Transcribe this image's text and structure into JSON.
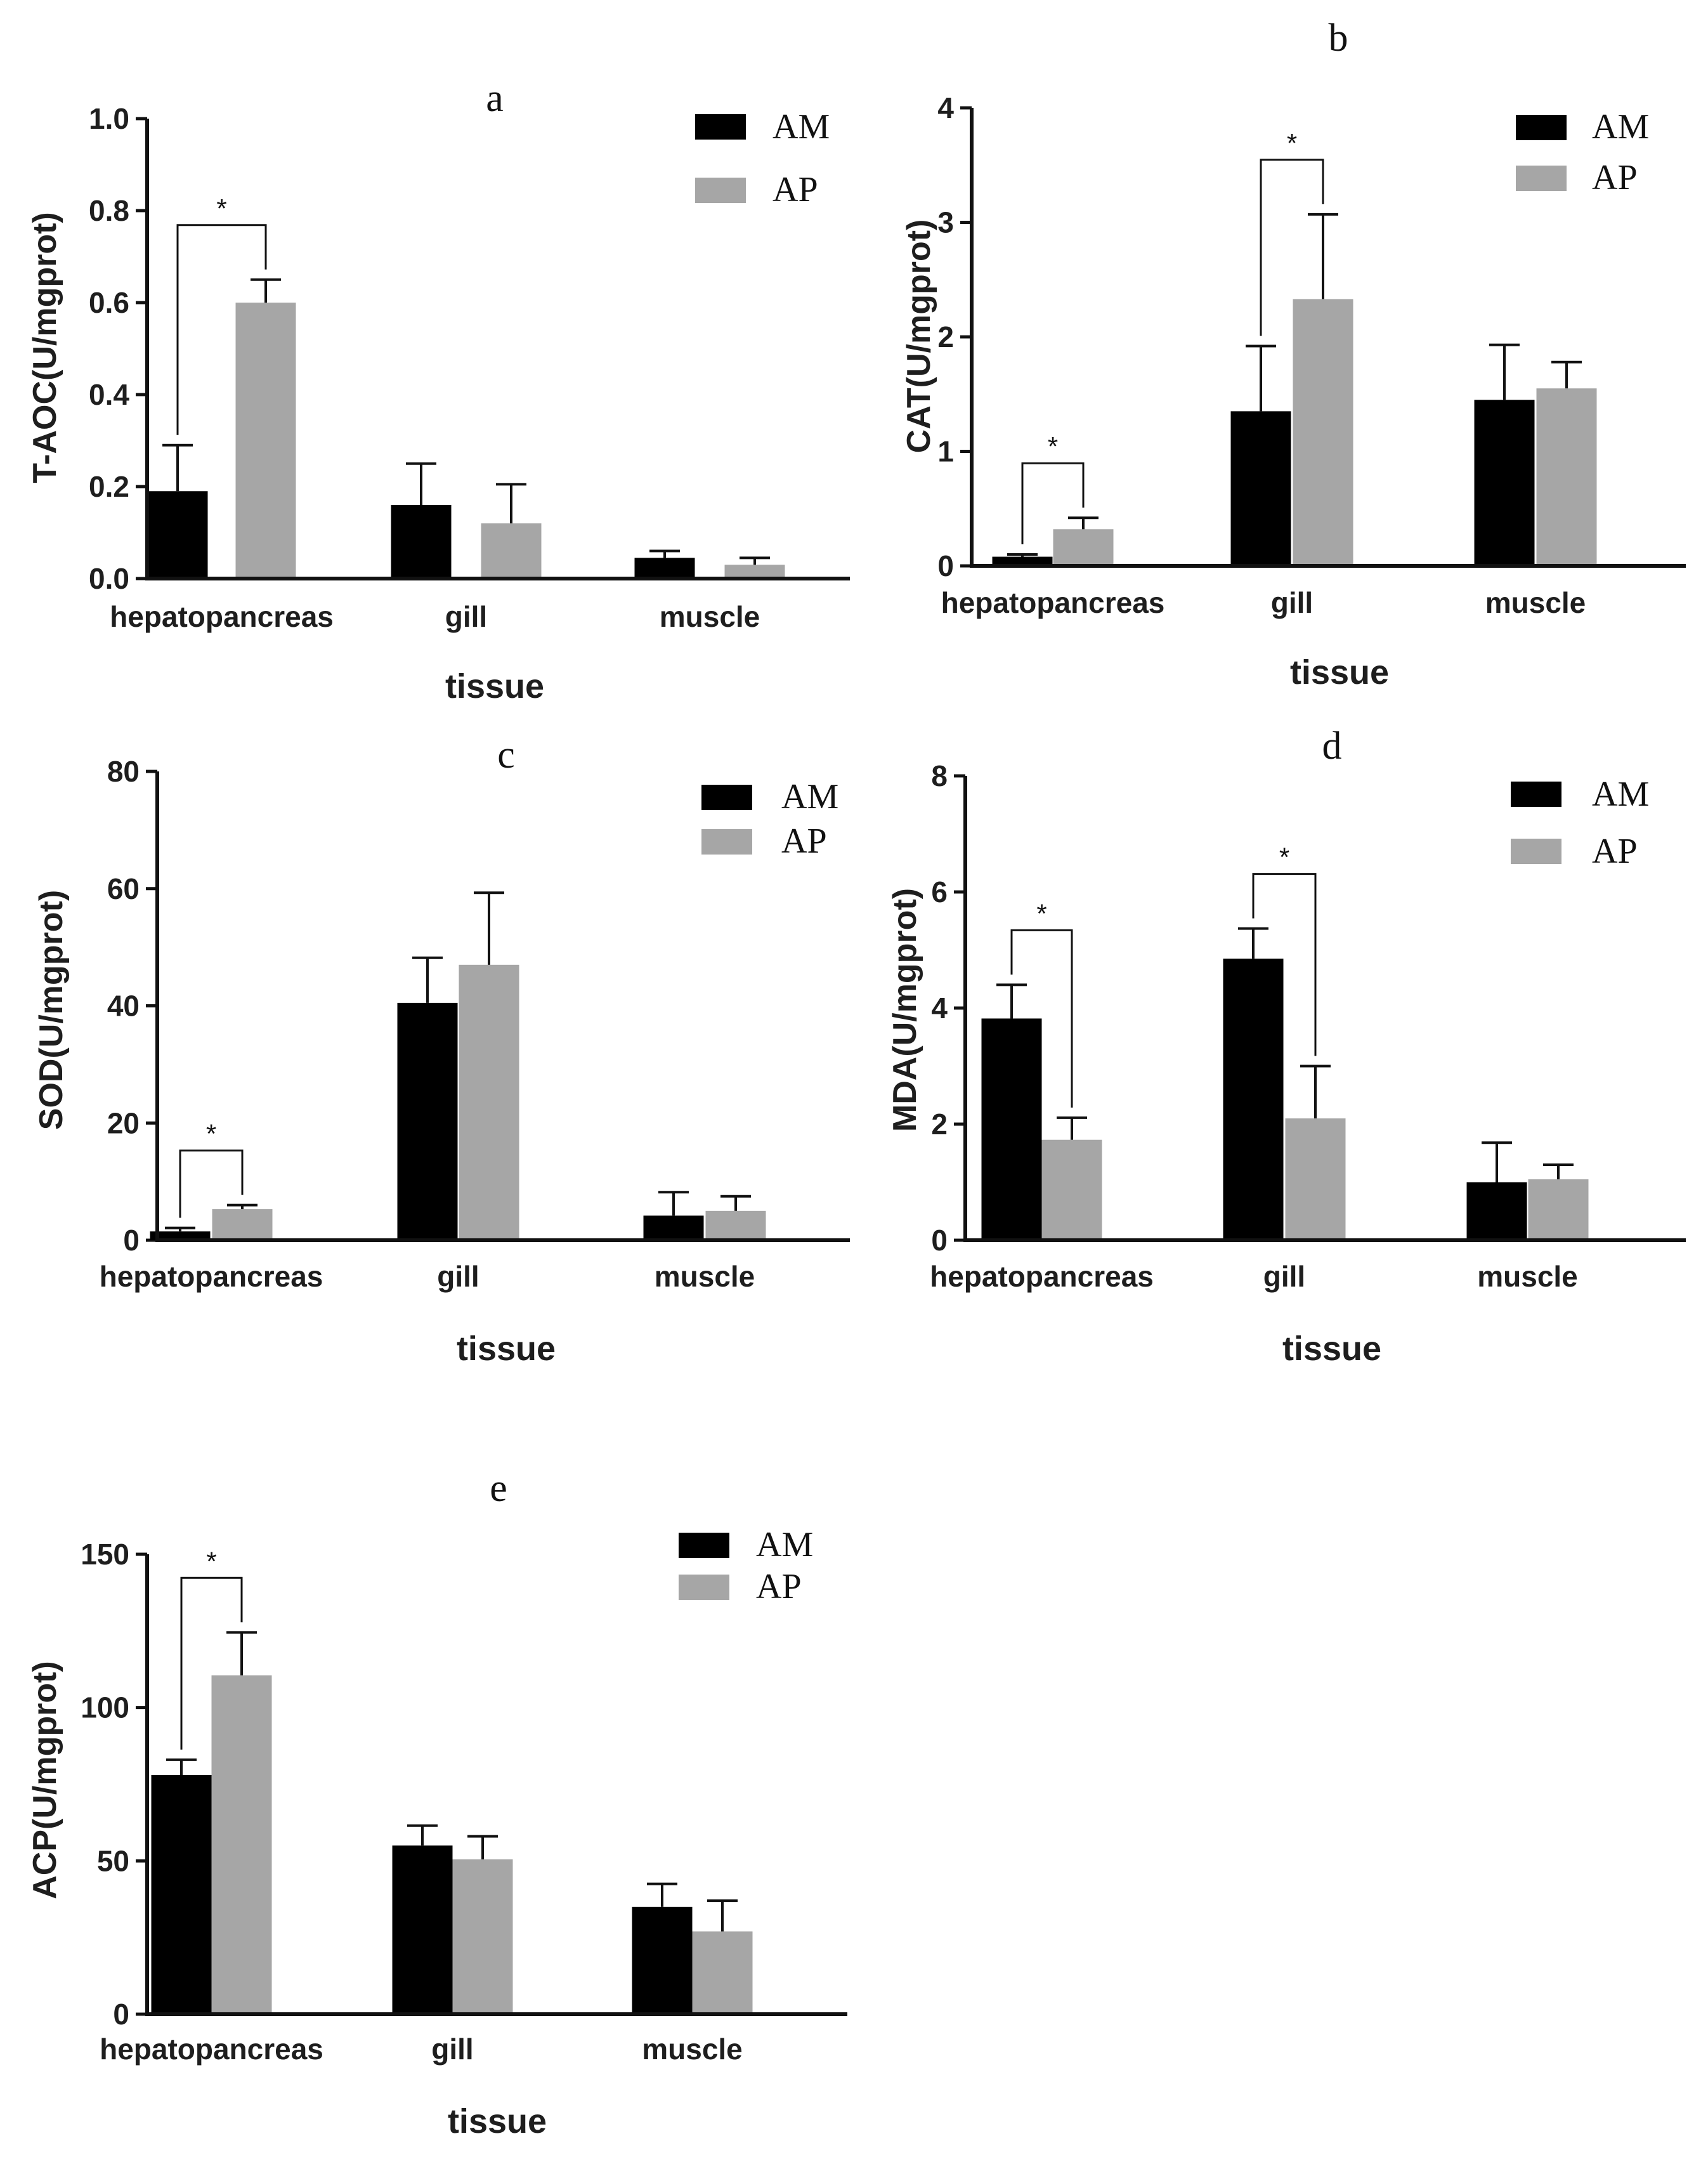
{
  "colors": {
    "AM": "#000000",
    "AP": "#a6a6a6",
    "axis": "#111111"
  },
  "chart_data": [
    {
      "id": "a",
      "panel_label": "a",
      "type": "bar",
      "ylabel": "T-AOC(U/mgprot)",
      "xlabel": "tissue",
      "categories": [
        "hepatopancreas",
        "gill",
        "muscle"
      ],
      "ylim": [
        0,
        1.0
      ],
      "yticks": [
        "0.0",
        "0.2",
        "0.4",
        "0.6",
        "0.8",
        "1.0"
      ],
      "series": [
        {
          "name": "AM",
          "values": [
            0.19,
            0.16,
            0.045
          ],
          "errors": [
            0.1,
            0.09,
            0.015
          ]
        },
        {
          "name": "AP",
          "values": [
            0.6,
            0.12,
            0.03
          ],
          "errors": [
            0.05,
            0.085,
            0.015
          ]
        }
      ],
      "significance": [
        {
          "category": 0,
          "label": "*"
        }
      ],
      "legend": [
        "AM",
        "AP"
      ]
    },
    {
      "id": "b",
      "panel_label": "b",
      "type": "bar",
      "ylabel": "CAT(U/mgprot)",
      "xlabel": "tissue",
      "categories": [
        "hepatopancreas",
        "gill",
        "muscle"
      ],
      "ylim": [
        0,
        4
      ],
      "yticks": [
        "0",
        "1",
        "2",
        "3",
        "4"
      ],
      "series": [
        {
          "name": "AM",
          "values": [
            0.08,
            1.35,
            1.45
          ],
          "errors": [
            0.02,
            0.57,
            0.48
          ]
        },
        {
          "name": "AP",
          "values": [
            0.32,
            2.33,
            1.55
          ],
          "errors": [
            0.1,
            0.74,
            0.23
          ]
        }
      ],
      "significance": [
        {
          "category": 0,
          "label": "*"
        },
        {
          "category": 1,
          "label": "*"
        }
      ],
      "legend": [
        "AM",
        "AP"
      ]
    },
    {
      "id": "c",
      "panel_label": "c",
      "type": "bar",
      "ylabel": "SOD(U/mgprot)",
      "xlabel": "tissue",
      "categories": [
        "hepatopancreas",
        "gill",
        "muscle"
      ],
      "ylim": [
        0,
        80
      ],
      "yticks": [
        "0",
        "20",
        "40",
        "60",
        "80"
      ],
      "series": [
        {
          "name": "AM",
          "values": [
            1.5,
            40.5,
            4.2
          ],
          "errors": [
            0.6,
            7.7,
            4.0
          ]
        },
        {
          "name": "AP",
          "values": [
            5.3,
            47.0,
            5.0
          ],
          "errors": [
            0.7,
            12.3,
            2.5
          ]
        }
      ],
      "significance": [
        {
          "category": 0,
          "label": "*"
        }
      ],
      "legend": [
        "AM",
        "AP"
      ]
    },
    {
      "id": "d",
      "panel_label": "d",
      "type": "bar",
      "ylabel": "MDA(U/mgprot)",
      "xlabel": "tissue",
      "categories": [
        "hepatopancreas",
        "gill",
        "muscle"
      ],
      "ylim": [
        0,
        8
      ],
      "yticks": [
        "0",
        "2",
        "4",
        "6",
        "8"
      ],
      "series": [
        {
          "name": "AM",
          "values": [
            3.82,
            4.85,
            1.0
          ],
          "errors": [
            0.58,
            0.52,
            0.68
          ]
        },
        {
          "name": "AP",
          "values": [
            1.73,
            2.1,
            1.05
          ],
          "errors": [
            0.38,
            0.9,
            0.25
          ]
        }
      ],
      "significance": [
        {
          "category": 0,
          "label": "*"
        },
        {
          "category": 1,
          "label": "*"
        }
      ],
      "legend": [
        "AM",
        "AP"
      ]
    },
    {
      "id": "e",
      "panel_label": "e",
      "type": "bar",
      "ylabel": "ACP(U/mgprot)",
      "xlabel": "tissue",
      "categories": [
        "hepatopancreas",
        "gill",
        "muscle"
      ],
      "ylim": [
        0,
        150
      ],
      "yticks": [
        "0",
        "50",
        "100",
        "150"
      ],
      "series": [
        {
          "name": "AM",
          "values": [
            78,
            55,
            35
          ],
          "errors": [
            5,
            6.5,
            7.5
          ]
        },
        {
          "name": "AP",
          "values": [
            110.5,
            50.5,
            27
          ],
          "errors": [
            14,
            7.5,
            10
          ]
        }
      ],
      "significance": [
        {
          "category": 0,
          "label": "*"
        }
      ],
      "legend": [
        "AM",
        "AP"
      ]
    }
  ]
}
